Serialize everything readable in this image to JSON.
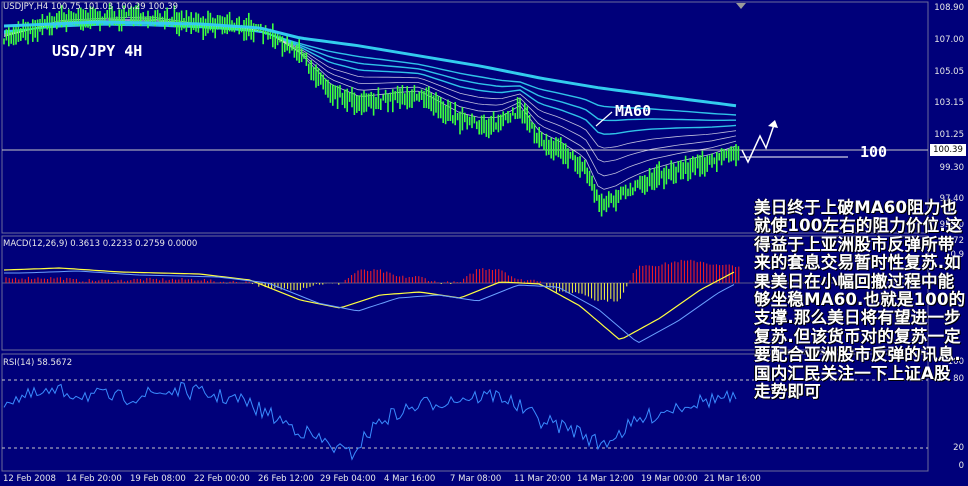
{
  "window": {
    "symbol_header": "USDJPY,H4  100.75 101.03 100.29 100.39"
  },
  "annotations": {
    "main_title": "USD/JPY 4H",
    "ma_label": "MA60",
    "level_label": "100"
  },
  "price_axis": {
    "ticks": [
      "108.90",
      "107.00",
      "105.05",
      "103.15",
      "101.25",
      "99.30",
      "97.40",
      "95.50",
      "93.72"
    ],
    "current_price": "100.39"
  },
  "indicators": {
    "macd_header": "MACD(12,26,9) 0.3613 0.2233 0.2759 0.0000",
    "rsi_header": "RSI(14) 58.5672",
    "macd_ticks": [
      "0.9"
    ],
    "rsi_ticks": [
      "100",
      "80",
      "20",
      "0"
    ]
  },
  "time_axis": [
    "12 Feb 2008",
    "14 Feb 20:00",
    "19 Feb 08:00",
    "22 Feb 00:00",
    "26 Feb 12:00",
    "29 Feb 04:00",
    "4 Mar 16:00",
    "7 Mar 08:00",
    "11 Mar 20:00",
    "14 Mar 12:00",
    "19 Mar 00:00",
    "21 Mar 16:00"
  ],
  "commentary": "美日终于上破MA60阻力也就使100左右的阻力价位.这得益于上亚洲股市反弹所带来的套息交易暂时性复苏.如果美日在小幅回撤过程中能够坐稳MA60.也就是100的支撑.那么美日将有望进一步复苏.但该货币对的复苏一定要配合亚洲股市反弹的讯息.国内汇民关注一下上证A股走势即可",
  "colors": {
    "background": "#00007a",
    "candle": "#3dff3d",
    "ma_fast": "#ffffff",
    "ma_slow": "#33ccee",
    "macd_pos": "#ff2020",
    "macd_neg": "#ffff40",
    "rsi_line": "#3a8cff"
  }
}
